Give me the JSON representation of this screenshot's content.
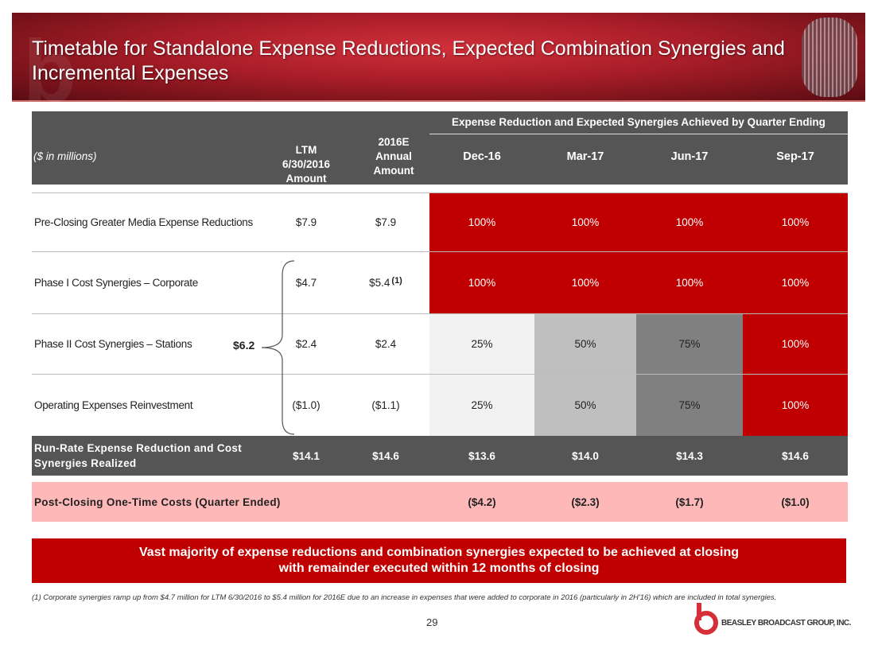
{
  "title": "Timetable for Standalone Expense Reductions, Expected Combination Synergies and Incremental Expenses",
  "header": {
    "group": "Expense Reduction and Expected Synergies Achieved by Quarter Ending",
    "units": "($ in millions)",
    "ltm": "LTM 6/30/2016 Amount",
    "annual": "2016E Annual Amount",
    "quarters": [
      "Dec-16",
      "Mar-17",
      "Jun-17",
      "Sep-17"
    ]
  },
  "rows": [
    {
      "label": "Pre-Closing Greater Media Expense Reductions",
      "ltm": "$7.9",
      "annual": "$7.9",
      "note": "",
      "q": [
        "100%",
        "100%",
        "100%",
        "100%"
      ]
    },
    {
      "label": "Phase I Cost Synergies – Corporate",
      "ltm": "$4.7",
      "annual": "$5.4",
      "note": "(1)",
      "q": [
        "100%",
        "100%",
        "100%",
        "100%"
      ]
    },
    {
      "label": "Phase II Cost Synergies – Stations",
      "ltm": "$2.4",
      "annual": "$2.4",
      "note": "",
      "q": [
        "25%",
        "50%",
        "75%",
        "100%"
      ]
    },
    {
      "label": "Operating Expenses Reinvestment",
      "ltm": "($1.0)",
      "annual": "($1.1)",
      "note": "",
      "q": [
        "25%",
        "50%",
        "75%",
        "100%"
      ]
    }
  ],
  "brace_total": "$6.2",
  "run_rate": {
    "label": "Run-Rate Expense Reduction and Cost Synergies Realized",
    "ltm": "$14.1",
    "annual": "$14.6",
    "q": [
      "$13.6",
      "$14.0",
      "$14.3",
      "$14.6"
    ]
  },
  "post_closing": {
    "label": "Post-Closing One-Time Costs (Quarter Ended)",
    "q": [
      "($4.2)",
      "($2.3)",
      "($1.7)",
      "($1.0)"
    ]
  },
  "callout": "Vast majority of expense reductions and combination synergies expected to be achieved at closing with remainder executed within 12 months of closing",
  "footnote": "(1)   Corporate synergies ramp up from $4.7 million for LTM 6/30/2016 to $5.4 million for 2016E due to an increase in expenses that were added to corporate in 2016 (particularly in 2H'16) which are included in total synergies.",
  "page_number": "29",
  "logo_text": "BEASLEY BROADCAST GROUP, INC."
}
